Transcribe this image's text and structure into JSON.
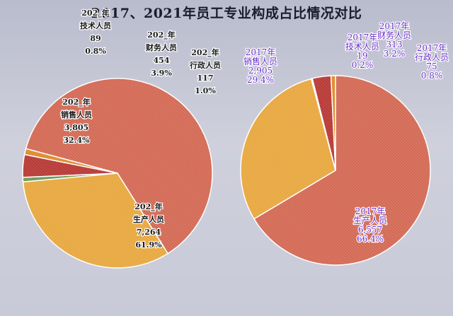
{
  "chart_data": [
    {
      "type": "pie",
      "title": "2017、2021年员工专业构成占比情况对比",
      "year_label": "202_年",
      "slices": [
        {
          "label": "生产人员",
          "value": 7264,
          "value_text": "7,264",
          "percent": "61.9%",
          "color": "#d36a55"
        },
        {
          "label": "销售人员",
          "value": 3805,
          "value_text": "3,805",
          "percent": "32.4%",
          "color": "#e8a840"
        },
        {
          "label": "技术人员",
          "value": 89,
          "value_text": "89",
          "percent": "0.8%",
          "color": "#6d9a52"
        },
        {
          "label": "财务人员",
          "value": 454,
          "value_text": "454",
          "percent": "3.9%",
          "color": "#b83a36"
        },
        {
          "label": "行政人员",
          "value": 117,
          "value_text": "117",
          "percent": "1.0%",
          "color": "#e08a2a"
        }
      ]
    },
    {
      "type": "pie",
      "year_label": "2017年",
      "slices": [
        {
          "label": "生产人员",
          "value": 6557,
          "value_text": "6,557",
          "percent": "66.4%",
          "color": "#d36a55"
        },
        {
          "label": "销售人员",
          "value": 2905,
          "value_text": "2,905",
          "percent": "29.4%",
          "color": "#e8a840"
        },
        {
          "label": "技术人员",
          "value": 19,
          "value_text": "19",
          "percent": "0.2%",
          "color": "#6d9a52"
        },
        {
          "label": "财务人员",
          "value": 313,
          "value_text": "313",
          "percent": "3.2%",
          "color": "#b83a36"
        },
        {
          "label": "行政人员",
          "value": 75,
          "value_text": "75",
          "percent": "0.8%",
          "color": "#e08a2a"
        }
      ]
    }
  ]
}
